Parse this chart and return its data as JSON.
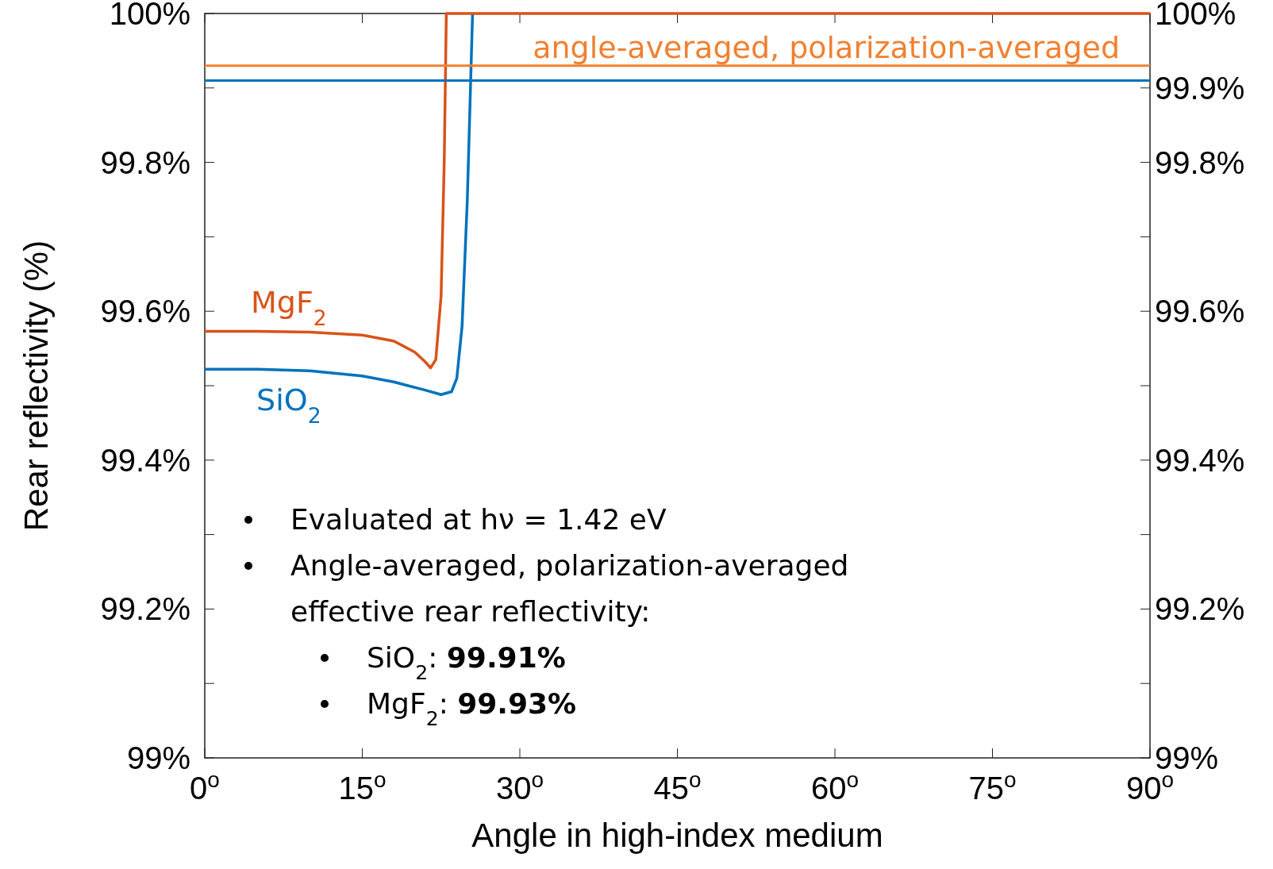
{
  "chart_data": {
    "type": "line",
    "xlabel": "Angle in high-index medium",
    "ylabel": "Rear reflectivity (%)",
    "xlim": [
      0,
      90
    ],
    "xticks": [
      {
        "value": 0,
        "label": "0$^{o}$"
      },
      {
        "value": 15,
        "label": "15$^{o}$"
      },
      {
        "value": 30,
        "label": "30$^{o}$"
      },
      {
        "value": 45,
        "label": "45$^{o}$"
      },
      {
        "value": 60,
        "label": "60$^{o}$"
      },
      {
        "value": 75,
        "label": "75$^{o}$"
      },
      {
        "value": 90,
        "label": "90$^{o}$"
      }
    ],
    "ylim": [
      99,
      100
    ],
    "yticks": [
      {
        "value": 99,
        "label": "99%"
      },
      {
        "value": 99.1,
        "label": null
      },
      {
        "value": 99.2,
        "label": "99.2%"
      },
      {
        "value": 99.3,
        "label": null
      },
      {
        "value": 99.4,
        "label": "99.4%"
      },
      {
        "value": 99.5,
        "label": null
      },
      {
        "value": 99.6,
        "label": "99.6%"
      },
      {
        "value": 99.7,
        "label": null
      },
      {
        "value": 99.8,
        "label": "99.8%"
      },
      {
        "value": 99.9,
        "label": null
      },
      {
        "value": 100,
        "label": "100%"
      }
    ],
    "y2lim": [
      99,
      100
    ],
    "y2ticks": [
      {
        "value": 99,
        "label": "99%"
      },
      {
        "value": 99.1,
        "label": null
      },
      {
        "value": 99.2,
        "label": "99.2%"
      },
      {
        "value": 99.3,
        "label": null
      },
      {
        "value": 99.4,
        "label": "99.4%"
      },
      {
        "value": 99.5,
        "label": null
      },
      {
        "value": 99.6,
        "label": "99.6%"
      },
      {
        "value": 99.7,
        "label": null
      },
      {
        "value": 99.8,
        "label": "99.8%"
      },
      {
        "value": 99.9,
        "label": "99.9%"
      },
      {
        "value": 100,
        "label": "100%"
      }
    ],
    "grid": false,
    "marker": "none",
    "line_style": "solid",
    "series": [
      {
        "name": "SiO$_{2}$",
        "color": "#0072bd",
        "x": [
          0,
          5,
          10,
          15,
          18,
          21,
          22.5,
          23.5,
          24,
          24.5,
          25,
          25.3,
          25.5
        ],
        "values": [
          99.522,
          99.522,
          99.52,
          99.513,
          99.505,
          99.494,
          99.488,
          99.492,
          99.51,
          99.58,
          99.75,
          99.9,
          100
        ]
      },
      {
        "name": "MgF$_{2}$",
        "color": "#d95319",
        "x": [
          0,
          5,
          10,
          15,
          18,
          20,
          21,
          21.5,
          22,
          22.5,
          22.8,
          23,
          90
        ],
        "values": [
          99.573,
          99.573,
          99.572,
          99.568,
          99.56,
          99.545,
          99.532,
          99.524,
          99.535,
          99.62,
          99.8,
          100,
          100
        ]
      }
    ],
    "ref_lines": [
      {
        "axis": "y",
        "value": 99.93,
        "label": "angle-averaged, polarization-averaged",
        "color": "#f08030"
      },
      {
        "axis": "y",
        "value": 99.91,
        "label": null,
        "color": "#0072bd"
      }
    ],
    "annotations": [
      "Evaluated at hν = 1.42 eV",
      "Angle-averaged, polarization-averaged effective rear reflectivity:",
      "SiO$_{2}$: 99.91%",
      "MgF$_{2}$: 99.93%"
    ]
  }
}
